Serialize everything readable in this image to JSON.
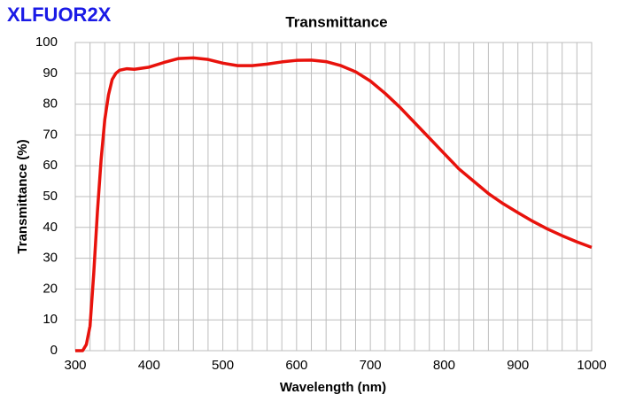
{
  "chart_data": {
    "type": "line",
    "title": "Transmittance",
    "label": "XLFUOR2X",
    "xlabel": "Wavelength (nm)",
    "ylabel": "Transmittance (%)",
    "x": [
      300,
      310,
      315,
      320,
      325,
      330,
      335,
      340,
      345,
      350,
      355,
      360,
      370,
      380,
      400,
      420,
      440,
      460,
      480,
      500,
      520,
      540,
      560,
      580,
      600,
      620,
      640,
      660,
      680,
      700,
      720,
      740,
      760,
      780,
      800,
      820,
      840,
      860,
      880,
      900,
      920,
      940,
      960,
      980,
      1000
    ],
    "series": [
      {
        "name": "XLFUOR2X",
        "color": "#e8120c",
        "values": [
          0,
          0,
          2,
          8,
          25,
          45,
          62,
          75,
          83,
          88,
          90,
          91,
          91.5,
          91.3,
          92,
          93.5,
          94.8,
          95,
          94.5,
          93.3,
          92.5,
          92.5,
          93,
          93.7,
          94.2,
          94.3,
          93.8,
          92.5,
          90.5,
          87.5,
          83.5,
          79,
          74,
          69,
          64,
          59,
          55,
          51,
          47.7,
          44.8,
          42,
          39.5,
          37.3,
          35.3,
          33.5
        ]
      }
    ],
    "xlim": [
      300,
      1000
    ],
    "ylim": [
      0,
      100
    ],
    "xticks": [
      300,
      400,
      500,
      600,
      700,
      800,
      900,
      1000
    ],
    "yticks": [
      0,
      10,
      20,
      30,
      40,
      50,
      60,
      70,
      80,
      90,
      100
    ],
    "xgrid": [
      320,
      340,
      360,
      380,
      420,
      440,
      460,
      480,
      520,
      540,
      560,
      580,
      620,
      640,
      660,
      680,
      720,
      740,
      760,
      780,
      820,
      840,
      860,
      880,
      920,
      940,
      960,
      980
    ],
    "grid": true
  }
}
